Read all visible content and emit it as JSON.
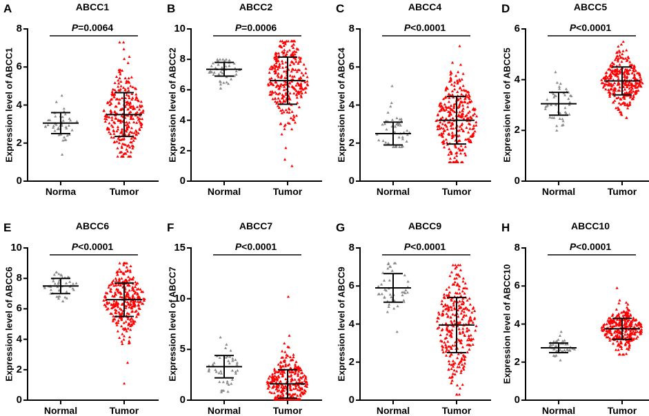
{
  "figure": {
    "categories_default": [
      "Normal",
      "Tumor"
    ],
    "colors": {
      "normal": "#8c8c8c",
      "tumor": "#ff0000",
      "axis": "#000000",
      "errorbar": "#000000"
    }
  },
  "chart_data": [
    {
      "type": "scatter",
      "panel": "A",
      "title": "ABCC1",
      "ylabel": "Expression level of ABCC1",
      "categories": [
        "Norma",
        "Tumor"
      ],
      "ylim": [
        0,
        8
      ],
      "yticks": [
        0,
        2,
        4,
        6,
        8
      ],
      "p_prefix": "P",
      "p_value": "=0.0064",
      "series": [
        {
          "name": "Normal",
          "mean": 3.05,
          "sd": 0.55,
          "min": 1.4,
          "max": 4.5,
          "n": 45
        },
        {
          "name": "Tumor",
          "mean": 3.5,
          "sd": 1.15,
          "min": 1.3,
          "max": 7.3,
          "n": 300
        }
      ]
    },
    {
      "type": "scatter",
      "panel": "B",
      "title": "ABCC2",
      "ylabel": "Expression level of ABCC2",
      "categories": [
        "Normal",
        "Tumor"
      ],
      "ylim": [
        0,
        10
      ],
      "yticks": [
        0,
        2,
        4,
        6,
        8,
        10
      ],
      "p_prefix": "P",
      "p_value": "=0.0006",
      "series": [
        {
          "name": "Normal",
          "mean": 7.35,
          "sd": 0.45,
          "min": 6.1,
          "max": 8.0,
          "n": 45
        },
        {
          "name": "Tumor",
          "mean": 6.6,
          "sd": 1.55,
          "min": 1.0,
          "max": 9.2,
          "n": 300
        }
      ]
    },
    {
      "type": "scatter",
      "panel": "C",
      "title": "ABCC4",
      "ylabel": "Expression level of ABCC4",
      "categories": [
        "Normal",
        "Tumor"
      ],
      "ylim": [
        0,
        8
      ],
      "yticks": [
        0,
        2,
        4,
        6,
        8
      ],
      "p_prefix": "P",
      "p_value": "<0.0001",
      "series": [
        {
          "name": "Normal",
          "mean": 2.5,
          "sd": 0.6,
          "min": 1.8,
          "max": 5.0,
          "n": 45
        },
        {
          "name": "Tumor",
          "mean": 3.2,
          "sd": 1.25,
          "min": 1.0,
          "max": 7.1,
          "n": 300
        }
      ]
    },
    {
      "type": "scatter",
      "panel": "D",
      "title": "ABCC5",
      "ylabel": "Expression level of ABCC5",
      "categories": [
        "Normal",
        "Tumor"
      ],
      "ylim": [
        0,
        6
      ],
      "yticks": [
        0,
        2,
        4,
        6
      ],
      "p_prefix": "P",
      "p_value": "<0.0001",
      "series": [
        {
          "name": "Normal",
          "mean": 3.05,
          "sd": 0.45,
          "min": 2.0,
          "max": 4.3,
          "n": 45
        },
        {
          "name": "Tumor",
          "mean": 3.95,
          "sd": 0.55,
          "min": 2.5,
          "max": 5.5,
          "n": 300
        }
      ]
    },
    {
      "type": "scatter",
      "panel": "E",
      "title": "ABCC6",
      "ylabel": "Expression level of ABCC6",
      "categories": [
        "Normal",
        "Tumor"
      ],
      "ylim": [
        0,
        10
      ],
      "yticks": [
        0,
        2,
        4,
        6,
        8,
        10
      ],
      "p_prefix": "P",
      "p_value": "<0.0001",
      "series": [
        {
          "name": "Normal",
          "mean": 7.5,
          "sd": 0.5,
          "min": 6.5,
          "max": 8.4,
          "n": 45
        },
        {
          "name": "Tumor",
          "mean": 6.6,
          "sd": 1.1,
          "min": 1.1,
          "max": 9.0,
          "n": 300
        }
      ]
    },
    {
      "type": "scatter",
      "panel": "F",
      "title": "ABCC7",
      "ylabel": "Expression level of ABCC7",
      "categories": [
        "Normal",
        "Tumor"
      ],
      "ylim": [
        0,
        15
      ],
      "yticks": [
        0,
        5,
        10,
        15
      ],
      "p_prefix": "P",
      "p_value": "<0.0001",
      "series": [
        {
          "name": "Normal",
          "mean": 3.3,
          "sd": 1.1,
          "min": 0.8,
          "max": 6.2,
          "n": 45
        },
        {
          "name": "Tumor",
          "mean": 1.6,
          "sd": 1.4,
          "min": 0.1,
          "max": 10.2,
          "n": 300
        }
      ]
    },
    {
      "type": "scatter",
      "panel": "G",
      "title": "ABCC9",
      "ylabel": "Expression level of ABCC9",
      "categories": [
        "Normal",
        "Tumor"
      ],
      "ylim": [
        0,
        8
      ],
      "yticks": [
        0,
        2,
        4,
        6,
        8
      ],
      "p_prefix": "P",
      "p_value": "<0.0001",
      "series": [
        {
          "name": "Normal",
          "mean": 5.9,
          "sd": 0.75,
          "min": 3.6,
          "max": 7.2,
          "n": 45
        },
        {
          "name": "Tumor",
          "mean": 3.95,
          "sd": 1.45,
          "min": 0.3,
          "max": 7.1,
          "n": 300
        }
      ]
    },
    {
      "type": "scatter",
      "panel": "H",
      "title": "ABCC10",
      "ylabel": "Expression level of ABCC10",
      "categories": [
        "Normal",
        "Tumor"
      ],
      "ylim": [
        0,
        8
      ],
      "yticks": [
        0,
        2,
        4,
        6,
        8
      ],
      "p_prefix": "P",
      "p_value": "<0.0001",
      "series": [
        {
          "name": "Normal",
          "mean": 2.75,
          "sd": 0.25,
          "min": 2.1,
          "max": 3.6,
          "n": 45
        },
        {
          "name": "Tumor",
          "mean": 3.75,
          "sd": 0.55,
          "min": 2.4,
          "max": 5.9,
          "n": 300
        }
      ]
    }
  ]
}
